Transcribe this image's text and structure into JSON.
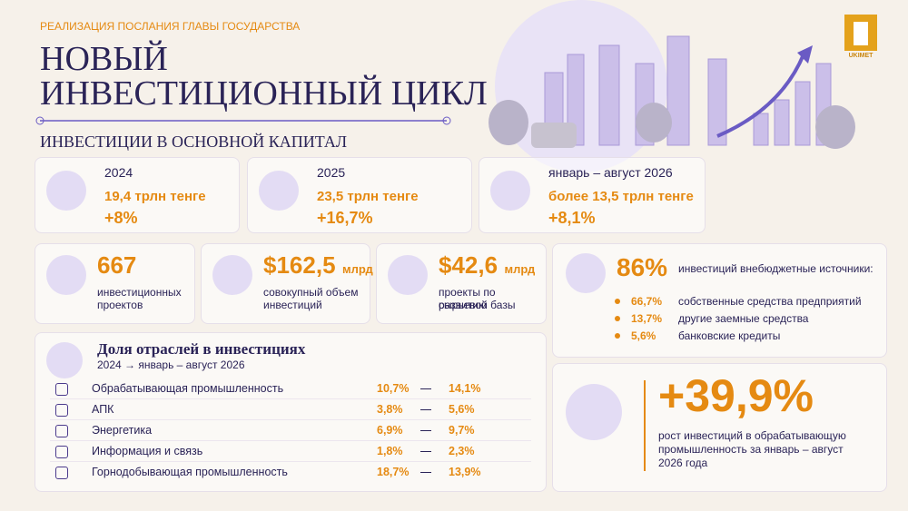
{
  "header": {
    "kicker": "РЕАЛИЗАЦИЯ ПОСЛАНИЯ ГЛАВЫ ГОСУДАРСТВА",
    "title_line1": "НОВЫЙ",
    "title_line2": "ИНВЕСТИЦИОННЫЙ ЦИКЛ",
    "subtitle": "ИНВЕСТИЦИИ В ОСНОВНОЙ КАПИТАЛ",
    "logo": "UKIMET"
  },
  "periods": [
    {
      "period": "2024",
      "amount": "19,4 трлн тенге",
      "growth": "+8%"
    },
    {
      "period": "2025",
      "amount": "23,5 трлн тенге",
      "growth": "+16,7%"
    },
    {
      "period": "январь – август 2026",
      "amount": "более 13,5 трлн тенге",
      "growth": "+8,1%"
    }
  ],
  "stats": [
    {
      "value": "667",
      "unit": "",
      "label_line1": "инвестиционных",
      "label_line2": "проектов"
    },
    {
      "value": "$162,5",
      "unit": "млрд",
      "label_line1": "совокупный объем",
      "label_line2": "инвестиций"
    },
    {
      "value": "$42,6",
      "unit": "млрд",
      "label_line1": "проекты по развитию",
      "label_line2": "сырьевой базы"
    }
  ],
  "sources": {
    "value": "86%",
    "label": "инвестиций внебюджетные источники:",
    "items": [
      {
        "value": "66,7%",
        "label": "собственные средства предприятий"
      },
      {
        "value": "13,7%",
        "label": "другие заемные средства"
      },
      {
        "value": "5,6%",
        "label": "банковские кредиты"
      }
    ]
  },
  "sectors": {
    "title": "Доля отраслей в инвестициях",
    "subtitle": "2024 → январь – август 2026",
    "rows": [
      {
        "name": "Обрабатывающая промышленность",
        "from": "10,7%",
        "to": "14,1%"
      },
      {
        "name": "АПК",
        "from": "3,8%",
        "to": "5,6%"
      },
      {
        "name": "Энергетика",
        "from": "6,9%",
        "to": "9,7%"
      },
      {
        "name": "Информация и связь",
        "from": "1,8%",
        "to": "2,3%"
      },
      {
        "name": "Горнодобывающая промышленность",
        "from": "18,7%",
        "to": "13,9%"
      }
    ]
  },
  "growth": {
    "value": "+39,9%",
    "text_line1": "рост инвестиций в обрабатывающую",
    "text_line2": "промышленность за январь – август",
    "text_line3": "2026 года"
  }
}
